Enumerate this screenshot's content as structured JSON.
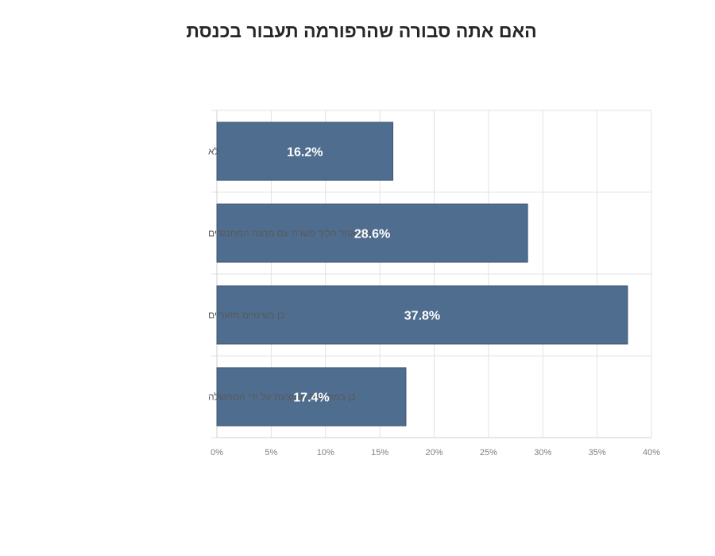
{
  "chart_data": {
    "type": "bar",
    "orientation": "horizontal",
    "title": "האם אתה סבורה שהרפורמה תעבור בכנסת",
    "categories": [
      "לא",
      "כן לאחר הליך פשרה עם מחנה המתנגדים",
      "כן בשינויים מזעריים",
      "כן במתכונת המוצעת על ידי הממשלה"
    ],
    "values": [
      16.2,
      28.6,
      37.8,
      17.4
    ],
    "data_labels": [
      "16.2%",
      "28.6%",
      "37.8%",
      "17.4%"
    ],
    "x_ticks": [
      "0%",
      "5%",
      "10%",
      "15%",
      "20%",
      "25%",
      "30%",
      "35%",
      "40%"
    ],
    "xlim": [
      0,
      40
    ],
    "grid": true,
    "legend": "none",
    "bar_color": "#4f6d8f"
  }
}
